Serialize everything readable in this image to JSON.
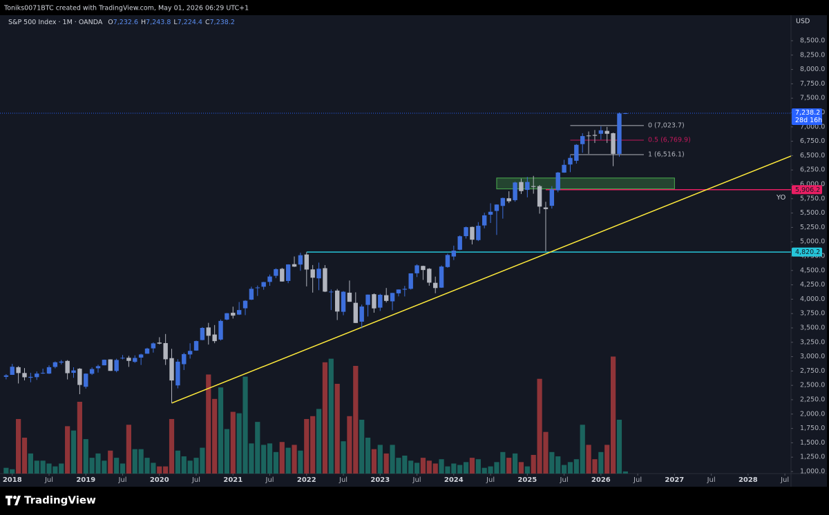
{
  "header": {
    "attribution": "Toniks0071BTC created with TradingView.com, May 01, 2026 06:29 UTC+1",
    "brand": "TradingView"
  },
  "chart_data": {
    "type": "candlestick",
    "symbol": "S&P 500 Index · 1M · OANDA",
    "currency": "USD",
    "ohlc_keys": [
      "O",
      "H",
      "L",
      "C"
    ],
    "ohlc_labels": [
      "7,232.6",
      "7,243.8",
      "7,224.4",
      "7,238.2"
    ],
    "x": [
      "2017-12",
      "2018-01",
      "2018-02",
      "2018-03",
      "2018-04",
      "2018-05",
      "2018-06",
      "2018-07",
      "2018-08",
      "2018-09",
      "2018-10",
      "2018-11",
      "2018-12",
      "2019-01",
      "2019-02",
      "2019-03",
      "2019-04",
      "2019-05",
      "2019-06",
      "2019-07",
      "2019-08",
      "2019-09",
      "2019-10",
      "2019-11",
      "2019-12",
      "2020-01",
      "2020-02",
      "2020-03",
      "2020-04",
      "2020-05",
      "2020-06",
      "2020-07",
      "2020-08",
      "2020-09",
      "2020-10",
      "2020-11",
      "2020-12",
      "2021-01",
      "2021-02",
      "2021-03",
      "2021-04",
      "2021-05",
      "2021-06",
      "2021-07",
      "2021-08",
      "2021-09",
      "2021-10",
      "2021-11",
      "2021-12",
      "2022-01",
      "2022-02",
      "2022-03",
      "2022-04",
      "2022-05",
      "2022-06",
      "2022-07",
      "2022-08",
      "2022-09",
      "2022-10",
      "2022-11",
      "2022-12",
      "2023-01",
      "2023-02",
      "2023-03",
      "2023-04",
      "2023-05",
      "2023-06",
      "2023-07",
      "2023-08",
      "2023-09",
      "2023-10",
      "2023-11",
      "2023-12",
      "2024-01",
      "2024-02",
      "2024-03",
      "2024-04",
      "2024-05",
      "2024-06",
      "2024-07",
      "2024-08",
      "2024-09",
      "2024-10",
      "2024-11",
      "2024-12",
      "2025-01",
      "2025-02",
      "2025-03",
      "2025-04",
      "2025-05",
      "2025-06",
      "2025-07",
      "2025-08",
      "2025-09",
      "2025-10",
      "2025-11",
      "2025-12",
      "2026-01",
      "2026-02",
      "2026-03",
      "2026-04",
      "2026-05"
    ],
    "open": [
      2648,
      2683,
      2816,
      2715,
      2633,
      2643,
      2718,
      2705,
      2821,
      2896,
      2926,
      2718,
      2790,
      2476,
      2702,
      2798,
      2849,
      2952,
      2751,
      2971,
      2980,
      2909,
      2983,
      3051,
      3144,
      3245,
      3236,
      2974,
      2499,
      2869,
      3038,
      3106,
      3289,
      3508,
      3385,
      3297,
      3645,
      3764,
      3732,
      3842,
      3992,
      4192,
      4217,
      4301,
      4407,
      4529,
      4318,
      4610,
      4603,
      4778,
      4519,
      4363,
      4540,
      4131,
      4150,
      3781,
      4113,
      3937,
      3609,
      3901,
      4087,
      3853,
      4070,
      3963,
      4102,
      4166,
      4181,
      4451,
      4579,
      4530,
      4285,
      4201,
      4560,
      4743,
      4861,
      5098,
      5258,
      5029,
      5284,
      5471,
      5537,
      5624,
      5757,
      5724,
      6040,
      5903,
      5969,
      5968,
      5597,
      5626,
      5896,
      6204,
      6345,
      6410,
      6700,
      6850,
      6860,
      6880,
      6930,
      6890,
      6530,
      7232.6
    ],
    "high": [
      2695,
      2873,
      2835,
      2801,
      2718,
      2742,
      2791,
      2848,
      2916,
      2941,
      2940,
      2815,
      2800,
      2708,
      2813,
      2860,
      2949,
      2954,
      2964,
      3028,
      3014,
      3022,
      3050,
      3154,
      3248,
      3338,
      3394,
      3136,
      2955,
      3068,
      3233,
      3280,
      3514,
      3588,
      3550,
      3646,
      3760,
      3870,
      3951,
      3983,
      4218,
      4238,
      4302,
      4429,
      4538,
      4546,
      4608,
      4744,
      4808,
      4819,
      4595,
      4637,
      4593,
      4169,
      4178,
      4141,
      4325,
      4120,
      3906,
      4081,
      4101,
      4095,
      4195,
      4110,
      4170,
      4231,
      4449,
      4607,
      4584,
      4541,
      4393,
      4587,
      4793,
      4932,
      5111,
      5265,
      5264,
      5342,
      5506,
      5670,
      5651,
      5768,
      5879,
      6045,
      6100,
      6128,
      6147,
      5987,
      5696,
      5969,
      6215,
      6427,
      6508,
      6700,
      6890,
      6920,
      6945,
      7010,
      7000,
      6900,
      7250,
      7243.8
    ],
    "low": [
      2605,
      2682,
      2533,
      2586,
      2553,
      2595,
      2698,
      2698,
      2796,
      2864,
      2603,
      2631,
      2346,
      2443,
      2681,
      2722,
      2848,
      2751,
      2728,
      2952,
      2822,
      2892,
      2855,
      3050,
      3070,
      3214,
      2855,
      2191,
      2447,
      2767,
      2966,
      3102,
      3285,
      3210,
      3234,
      3280,
      3634,
      3663,
      3725,
      3723,
      3986,
      4057,
      4165,
      4233,
      4367,
      4306,
      4279,
      4561,
      4495,
      4223,
      4115,
      4157,
      4124,
      3811,
      3637,
      3721,
      3955,
      3585,
      3492,
      3699,
      3765,
      3795,
      3943,
      3808,
      4049,
      4048,
      4167,
      4386,
      4336,
      4235,
      4104,
      4197,
      4547,
      4682,
      4853,
      5056,
      4954,
      5012,
      5234,
      5327,
      5119,
      5403,
      5674,
      5697,
      5832,
      5773,
      5837,
      5489,
      4835,
      5578,
      5862,
      6201,
      6212,
      6360,
      6550,
      6530,
      6720,
      6780,
      6720,
      6316,
      6480,
      7224.4
    ],
    "close": [
      2674,
      2824,
      2714,
      2641,
      2648,
      2705,
      2718,
      2816,
      2902,
      2914,
      2712,
      2760,
      2507,
      2704,
      2784,
      2834,
      2946,
      2752,
      2942,
      2980,
      2926,
      2977,
      3038,
      3141,
      3231,
      3226,
      2954,
      2585,
      2912,
      3044,
      3100,
      3271,
      3500,
      3363,
      3270,
      3622,
      3756,
      3714,
      3811,
      3973,
      4181,
      4204,
      4298,
      4395,
      4523,
      4308,
      4605,
      4567,
      4766,
      4516,
      4374,
      4530,
      4132,
      4132,
      3785,
      4130,
      3955,
      3586,
      3872,
      4080,
      3840,
      4077,
      3970,
      4109,
      4169,
      4180,
      4450,
      4589,
      4508,
      4288,
      4194,
      4568,
      4770,
      4846,
      5096,
      5254,
      5036,
      5278,
      5460,
      5522,
      5648,
      5762,
      5705,
      6032,
      5882,
      6041,
      5955,
      5612,
      5569,
      5912,
      6205,
      6339,
      6460,
      6688,
      6840,
      6849,
      6845,
      6940,
      6880,
      6530,
      7232.6,
      7238.2
    ],
    "volume": [
      8,
      6,
      76,
      50,
      28,
      18,
      18,
      14,
      10,
      14,
      66,
      60,
      100,
      48,
      22,
      28,
      18,
      32,
      22,
      14,
      68,
      34,
      34,
      22,
      15,
      10,
      10,
      76,
      32,
      24,
      18,
      22,
      36,
      138,
      104,
      120,
      62,
      86,
      84,
      135,
      42,
      72,
      40,
      42,
      30,
      44,
      36,
      40,
      32,
      76,
      80,
      90,
      155,
      160,
      125,
      45,
      80,
      150,
      75,
      50,
      34,
      40,
      28,
      40,
      22,
      25,
      18,
      15,
      22,
      18,
      14,
      20,
      10,
      14,
      12,
      16,
      22,
      20,
      8,
      10,
      16,
      30,
      22,
      28,
      16,
      10,
      26,
      132,
      58,
      30,
      24,
      12,
      16,
      20,
      68,
      40,
      20,
      30,
      40,
      163,
      75,
      3
    ],
    "up_color": "#3d6fdc",
    "down_color": "#b2b5be",
    "volume_up_color": "#1b645e",
    "volume_down_color": "#8f3438",
    "ylim": [
      1000,
      8500
    ],
    "yticks": [
      {
        "value": 1000,
        "label": "1,000.0"
      },
      {
        "value": 1250,
        "label": "1,250.0"
      },
      {
        "value": 1500,
        "label": "1,500.0"
      },
      {
        "value": 1750,
        "label": "1,750.0"
      },
      {
        "value": 2000,
        "label": "2,000.0"
      },
      {
        "value": 2250,
        "label": "2,250.0"
      },
      {
        "value": 2500,
        "label": "2,500.0"
      },
      {
        "value": 2750,
        "label": "2,750.0"
      },
      {
        "value": 3000,
        "label": "3,000.0"
      },
      {
        "value": 3250,
        "label": "3,250.0"
      },
      {
        "value": 3500,
        "label": "3,500.0"
      },
      {
        "value": 3750,
        "label": "3,750.0"
      },
      {
        "value": 4000,
        "label": "4,000.0"
      },
      {
        "value": 4250,
        "label": "4,250.0"
      },
      {
        "value": 4500,
        "label": "4,500.0"
      },
      {
        "value": 4750,
        "label": "4,750.0"
      },
      {
        "value": 5000,
        "label": "5,000.0"
      },
      {
        "value": 5250,
        "label": "5,250.0"
      },
      {
        "value": 5500,
        "label": "5,500.0"
      },
      {
        "value": 5750,
        "label": "5,750.0"
      },
      {
        "value": 6000,
        "label": "6,000.0"
      },
      {
        "value": 6250,
        "label": "6,250.0"
      },
      {
        "value": 6500,
        "label": "6,500.0"
      },
      {
        "value": 6750,
        "label": "6,750.0"
      },
      {
        "value": 7000,
        "label": "7,000.0"
      },
      {
        "value": 7250,
        "label": "7,250.0"
      },
      {
        "value": 7500,
        "label": "7,500.0"
      },
      {
        "value": 7750,
        "label": "7,750.0"
      },
      {
        "value": 8000,
        "label": "8,000.0"
      },
      {
        "value": 8250,
        "label": "8,250.0"
      },
      {
        "value": 8500,
        "label": "8,500.0"
      }
    ],
    "xlim": [
      "2017-11",
      "2028-08"
    ],
    "xticks": [
      {
        "value": "2018-01",
        "label": "2018"
      },
      {
        "value": "2018-07",
        "label": "Jul"
      },
      {
        "value": "2019-01",
        "label": "2019"
      },
      {
        "value": "2019-07",
        "label": "Jul"
      },
      {
        "value": "2020-01",
        "label": "2020"
      },
      {
        "value": "2020-07",
        "label": "Jul"
      },
      {
        "value": "2021-01",
        "label": "2021"
      },
      {
        "value": "2021-07",
        "label": "Jul"
      },
      {
        "value": "2022-01",
        "label": "2022"
      },
      {
        "value": "2022-07",
        "label": "Jul"
      },
      {
        "value": "2023-01",
        "label": "2023"
      },
      {
        "value": "2023-07",
        "label": "Jul"
      },
      {
        "value": "2024-01",
        "label": "2024"
      },
      {
        "value": "2024-07",
        "label": "Jul"
      },
      {
        "value": "2025-01",
        "label": "2025"
      },
      {
        "value": "2025-07",
        "label": "Jul"
      },
      {
        "value": "2026-01",
        "label": "2026"
      },
      {
        "value": "2026-07",
        "label": "Jul"
      },
      {
        "value": "2027-01",
        "label": "2027"
      },
      {
        "value": "2027-07",
        "label": "Jul"
      },
      {
        "value": "2028-01",
        "label": "2028"
      },
      {
        "value": "2028-07",
        "label": "Jul"
      }
    ],
    "current_price": {
      "value": 7238.2,
      "label": "7,238.2",
      "countdown": "28d 16h",
      "color": "#2962ff"
    },
    "levels": [
      {
        "price": 5906.2,
        "label": "5,906.2",
        "color": "#e91e63",
        "from": "2025-04",
        "note": "YO"
      },
      {
        "price": 4820.2,
        "label": "4,820.2",
        "color": "#26c6da",
        "from": "2022-01"
      }
    ],
    "fib": {
      "from": "2025-08",
      "to": "2026-08",
      "levels": [
        {
          "price": 7023.7,
          "label": "0 (7,023.7)",
          "color": "#b2b5be"
        },
        {
          "price": 6769.9,
          "label": "0.5 (6,769.9)",
          "color": "#c2185b"
        },
        {
          "price": 6516.1,
          "label": "1 (6,516.1)",
          "color": "#b2b5be"
        }
      ]
    },
    "zone": {
      "from": "2024-08",
      "to": "2027-01",
      "top": 6110,
      "bottom": 5920,
      "color": "#4caf50"
    },
    "trendline": {
      "from": {
        "x": "2020-03",
        "price": 2191
      },
      "to": {
        "x": "2028-08",
        "price": 6493
      },
      "color": "#ffeb3b"
    }
  }
}
